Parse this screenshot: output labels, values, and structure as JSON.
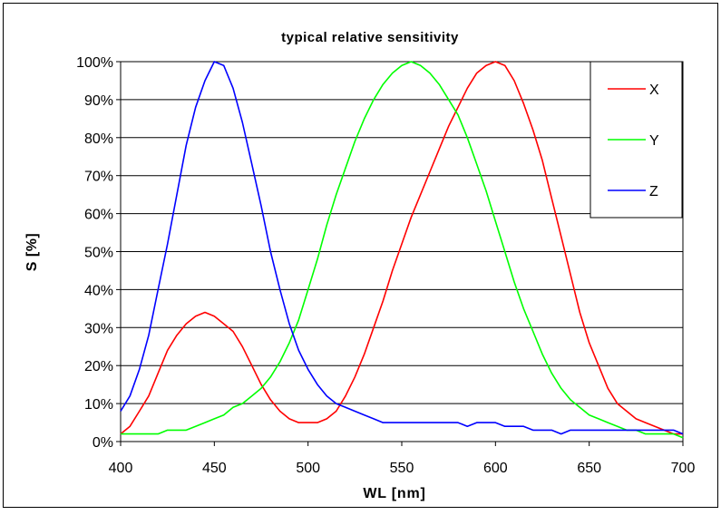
{
  "chart_data": {
    "type": "line",
    "title": "typical relative sensitivity",
    "xlabel": "WL [nm]",
    "ylabel": "S [%]",
    "xlim": [
      400,
      700
    ],
    "ylim": [
      0,
      100
    ],
    "x_ticks": [
      "400",
      "450",
      "500",
      "550",
      "600",
      "650",
      "700"
    ],
    "y_ticks": [
      "0%",
      "10%",
      "20%",
      "30%",
      "40%",
      "50%",
      "60%",
      "70%",
      "80%",
      "90%",
      "100%"
    ],
    "grid": "horizontal",
    "legend_position": "top-right",
    "series": [
      {
        "name": "X",
        "color": "#ff0000",
        "points": [
          [
            400,
            2
          ],
          [
            405,
            4
          ],
          [
            410,
            8
          ],
          [
            415,
            12
          ],
          [
            420,
            18
          ],
          [
            425,
            24
          ],
          [
            430,
            28
          ],
          [
            435,
            31
          ],
          [
            440,
            33
          ],
          [
            445,
            34
          ],
          [
            450,
            33
          ],
          [
            455,
            31
          ],
          [
            460,
            29
          ],
          [
            465,
            25
          ],
          [
            470,
            20
          ],
          [
            475,
            15
          ],
          [
            480,
            11
          ],
          [
            485,
            8
          ],
          [
            490,
            6
          ],
          [
            495,
            5
          ],
          [
            500,
            5
          ],
          [
            505,
            5
          ],
          [
            510,
            6
          ],
          [
            515,
            8
          ],
          [
            520,
            12
          ],
          [
            525,
            17
          ],
          [
            530,
            23
          ],
          [
            535,
            30
          ],
          [
            540,
            37
          ],
          [
            545,
            45
          ],
          [
            550,
            52
          ],
          [
            555,
            59
          ],
          [
            560,
            65
          ],
          [
            565,
            71
          ],
          [
            570,
            77
          ],
          [
            575,
            83
          ],
          [
            580,
            88
          ],
          [
            585,
            93
          ],
          [
            590,
            97
          ],
          [
            595,
            99
          ],
          [
            600,
            100
          ],
          [
            605,
            99
          ],
          [
            610,
            95
          ],
          [
            615,
            89
          ],
          [
            620,
            82
          ],
          [
            625,
            74
          ],
          [
            630,
            64
          ],
          [
            635,
            54
          ],
          [
            640,
            44
          ],
          [
            645,
            34
          ],
          [
            650,
            26
          ],
          [
            655,
            20
          ],
          [
            660,
            14
          ],
          [
            665,
            10
          ],
          [
            670,
            8
          ],
          [
            675,
            6
          ],
          [
            680,
            5
          ],
          [
            685,
            4
          ],
          [
            690,
            3
          ],
          [
            695,
            2
          ],
          [
            700,
            2
          ]
        ]
      },
      {
        "name": "Y",
        "color": "#00ff00",
        "points": [
          [
            400,
            2
          ],
          [
            405,
            2
          ],
          [
            410,
            2
          ],
          [
            415,
            2
          ],
          [
            420,
            2
          ],
          [
            425,
            3
          ],
          [
            430,
            3
          ],
          [
            435,
            3
          ],
          [
            440,
            4
          ],
          [
            445,
            5
          ],
          [
            450,
            6
          ],
          [
            455,
            7
          ],
          [
            460,
            9
          ],
          [
            465,
            10
          ],
          [
            470,
            12
          ],
          [
            475,
            14
          ],
          [
            480,
            17
          ],
          [
            485,
            21
          ],
          [
            490,
            26
          ],
          [
            495,
            32
          ],
          [
            500,
            40
          ],
          [
            505,
            48
          ],
          [
            510,
            57
          ],
          [
            515,
            65
          ],
          [
            520,
            72
          ],
          [
            525,
            79
          ],
          [
            530,
            85
          ],
          [
            535,
            90
          ],
          [
            540,
            94
          ],
          [
            545,
            97
          ],
          [
            550,
            99
          ],
          [
            555,
            100
          ],
          [
            560,
            99
          ],
          [
            565,
            97
          ],
          [
            570,
            94
          ],
          [
            575,
            90
          ],
          [
            580,
            86
          ],
          [
            585,
            80
          ],
          [
            590,
            73
          ],
          [
            595,
            66
          ],
          [
            600,
            58
          ],
          [
            605,
            50
          ],
          [
            610,
            42
          ],
          [
            615,
            35
          ],
          [
            620,
            29
          ],
          [
            625,
            23
          ],
          [
            630,
            18
          ],
          [
            635,
            14
          ],
          [
            640,
            11
          ],
          [
            645,
            9
          ],
          [
            650,
            7
          ],
          [
            655,
            6
          ],
          [
            660,
            5
          ],
          [
            665,
            4
          ],
          [
            670,
            3
          ],
          [
            675,
            3
          ],
          [
            680,
            2
          ],
          [
            685,
            2
          ],
          [
            690,
            2
          ],
          [
            695,
            2
          ],
          [
            700,
            1
          ]
        ]
      },
      {
        "name": "Z",
        "color": "#0000ff",
        "points": [
          [
            400,
            8
          ],
          [
            405,
            12
          ],
          [
            410,
            19
          ],
          [
            415,
            28
          ],
          [
            420,
            40
          ],
          [
            425,
            52
          ],
          [
            430,
            65
          ],
          [
            435,
            78
          ],
          [
            440,
            88
          ],
          [
            445,
            95
          ],
          [
            450,
            100
          ],
          [
            455,
            99
          ],
          [
            460,
            93
          ],
          [
            465,
            84
          ],
          [
            470,
            73
          ],
          [
            475,
            62
          ],
          [
            480,
            50
          ],
          [
            485,
            40
          ],
          [
            490,
            31
          ],
          [
            495,
            24
          ],
          [
            500,
            19
          ],
          [
            505,
            15
          ],
          [
            510,
            12
          ],
          [
            515,
            10
          ],
          [
            520,
            9
          ],
          [
            525,
            8
          ],
          [
            530,
            7
          ],
          [
            535,
            6
          ],
          [
            540,
            5
          ],
          [
            545,
            5
          ],
          [
            550,
            5
          ],
          [
            555,
            5
          ],
          [
            560,
            5
          ],
          [
            565,
            5
          ],
          [
            570,
            5
          ],
          [
            575,
            5
          ],
          [
            580,
            5
          ],
          [
            585,
            4
          ],
          [
            590,
            5
          ],
          [
            595,
            5
          ],
          [
            600,
            5
          ],
          [
            605,
            4
          ],
          [
            610,
            4
          ],
          [
            615,
            4
          ],
          [
            620,
            3
          ],
          [
            625,
            3
          ],
          [
            630,
            3
          ],
          [
            635,
            2
          ],
          [
            640,
            3
          ],
          [
            645,
            3
          ],
          [
            650,
            3
          ],
          [
            655,
            3
          ],
          [
            660,
            3
          ],
          [
            665,
            3
          ],
          [
            670,
            3
          ],
          [
            675,
            3
          ],
          [
            680,
            3
          ],
          [
            685,
            3
          ],
          [
            690,
            3
          ],
          [
            695,
            3
          ],
          [
            700,
            2
          ]
        ]
      }
    ]
  }
}
